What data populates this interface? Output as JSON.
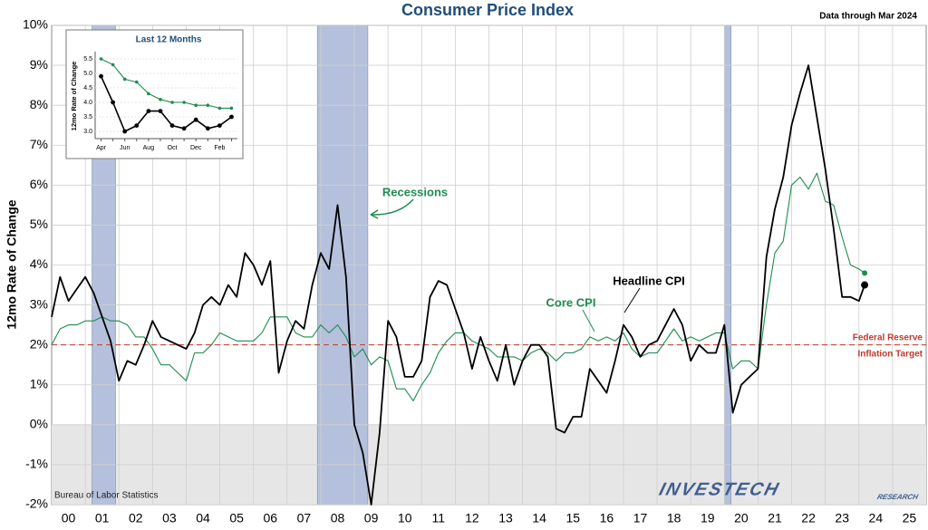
{
  "chart_data": [
    {
      "type": "line",
      "title": "Consumer Price Index",
      "note": "Data through Mar 2024",
      "source": "Bureau of Labor Statistics",
      "logo": [
        "INVESTECH",
        "RESEARCH"
      ],
      "y_label": "12mo Rate of Change",
      "xlim": [
        0,
        26
      ],
      "ylim": [
        -2,
        10
      ],
      "xticks": [
        {
          "value": 0.5,
          "label": "00"
        },
        {
          "value": 1.5,
          "label": "01"
        },
        {
          "value": 2.5,
          "label": "02"
        },
        {
          "value": 3.5,
          "label": "03"
        },
        {
          "value": 4.5,
          "label": "04"
        },
        {
          "value": 5.5,
          "label": "05"
        },
        {
          "value": 6.5,
          "label": "06"
        },
        {
          "value": 7.5,
          "label": "07"
        },
        {
          "value": 8.5,
          "label": "08"
        },
        {
          "value": 9.5,
          "label": "09"
        },
        {
          "value": 10.5,
          "label": "10"
        },
        {
          "value": 11.5,
          "label": "11"
        },
        {
          "value": 12.5,
          "label": "12"
        },
        {
          "value": 13.5,
          "label": "13"
        },
        {
          "value": 14.5,
          "label": "14"
        },
        {
          "value": 15.5,
          "label": "15"
        },
        {
          "value": 16.5,
          "label": "16"
        },
        {
          "value": 17.5,
          "label": "17"
        },
        {
          "value": 18.5,
          "label": "18"
        },
        {
          "value": 19.5,
          "label": "19"
        },
        {
          "value": 20.5,
          "label": "20"
        },
        {
          "value": 21.5,
          "label": "21"
        },
        {
          "value": 22.5,
          "label": "22"
        },
        {
          "value": 23.5,
          "label": "23"
        },
        {
          "value": 24.5,
          "label": "24"
        },
        {
          "value": 25.5,
          "label": "25"
        }
      ],
      "yticks": [
        {
          "value": -2,
          "label": "-2%"
        },
        {
          "value": -1,
          "label": "-1%"
        },
        {
          "value": 0,
          "label": "0%"
        },
        {
          "value": 1,
          "label": "1%"
        },
        {
          "value": 2,
          "label": "2%"
        },
        {
          "value": 3,
          "label": "3%"
        },
        {
          "value": 4,
          "label": "4%"
        },
        {
          "value": 5,
          "label": "5%"
        },
        {
          "value": 6,
          "label": "6%"
        },
        {
          "value": 7,
          "label": "7%"
        },
        {
          "value": 8,
          "label": "8%"
        },
        {
          "value": 9,
          "label": "9%"
        },
        {
          "value": 10,
          "label": "10%"
        }
      ],
      "grid": true,
      "recession_label": "Recessions",
      "recession_color": "#b4c0dc",
      "recessions": [
        [
          1.2,
          1.9
        ],
        [
          7.9,
          9.4
        ],
        [
          20.0,
          20.2
        ]
      ],
      "target": 2,
      "target_label": [
        "Federal Reserve",
        "Inflation Target"
      ],
      "target_color": "#c0392b",
      "x": [
        0,
        0.25,
        0.5,
        0.75,
        1,
        1.25,
        1.5,
        1.75,
        2,
        2.25,
        2.5,
        2.75,
        3,
        3.25,
        3.5,
        3.75,
        4,
        4.25,
        4.5,
        4.75,
        5,
        5.25,
        5.5,
        5.75,
        6,
        6.25,
        6.5,
        6.75,
        7,
        7.25,
        7.5,
        7.75,
        8,
        8.25,
        8.5,
        8.75,
        9,
        9.25,
        9.5,
        9.75,
        10,
        10.25,
        10.5,
        10.75,
        11,
        11.25,
        11.5,
        11.75,
        12,
        12.25,
        12.5,
        12.75,
        13,
        13.25,
        13.5,
        13.75,
        14,
        14.25,
        14.5,
        14.75,
        15,
        15.25,
        15.5,
        15.75,
        16,
        16.25,
        16.5,
        16.75,
        17,
        17.25,
        17.5,
        17.75,
        18,
        18.25,
        18.5,
        18.75,
        19,
        19.25,
        19.5,
        19.75,
        20,
        20.25,
        20.5,
        20.75,
        21,
        21.25,
        21.5,
        21.75,
        22,
        22.25,
        22.5,
        22.75,
        23,
        23.25,
        23.5,
        23.75,
        24,
        24.17
      ],
      "series": [
        {
          "name": "Headline CPI",
          "color": "#000000",
          "values": [
            2.7,
            3.7,
            3.1,
            3.4,
            3.7,
            3.3,
            2.7,
            2.1,
            1.1,
            1.6,
            1.5,
            2.0,
            2.6,
            2.2,
            2.1,
            2.0,
            1.9,
            2.3,
            3.0,
            3.2,
            3.0,
            3.5,
            3.2,
            4.3,
            4.0,
            3.5,
            4.1,
            1.3,
            2.1,
            2.6,
            2.4,
            3.5,
            4.3,
            3.9,
            5.5,
            3.7,
            0.0,
            -0.7,
            -2.0,
            -0.2,
            2.6,
            2.2,
            1.2,
            1.2,
            1.6,
            3.2,
            3.6,
            3.5,
            2.9,
            2.3,
            1.4,
            2.2,
            1.6,
            1.1,
            2.0,
            1.0,
            1.6,
            2.0,
            2.0,
            1.7,
            -0.1,
            -0.2,
            0.2,
            0.2,
            1.4,
            1.1,
            0.8,
            1.6,
            2.5,
            2.2,
            1.7,
            2.0,
            2.1,
            2.5,
            2.9,
            2.5,
            1.6,
            2.0,
            1.8,
            1.8,
            2.5,
            0.3,
            1.0,
            1.2,
            1.4,
            4.2,
            5.4,
            6.2,
            7.5,
            8.3,
            9.0,
            7.7,
            6.4,
            4.9,
            3.2,
            3.2,
            3.1,
            3.5
          ]
        },
        {
          "name": "Core CPI",
          "color": "#1e8c4e",
          "values": [
            2.0,
            2.4,
            2.5,
            2.5,
            2.6,
            2.6,
            2.7,
            2.6,
            2.6,
            2.5,
            2.2,
            2.2,
            1.9,
            1.5,
            1.5,
            1.3,
            1.1,
            1.8,
            1.8,
            2.0,
            2.3,
            2.2,
            2.1,
            2.1,
            2.1,
            2.3,
            2.7,
            2.7,
            2.7,
            2.3,
            2.2,
            2.2,
            2.5,
            2.3,
            2.5,
            2.2,
            1.7,
            1.9,
            1.5,
            1.7,
            1.6,
            0.9,
            0.9,
            0.6,
            1.0,
            1.3,
            1.8,
            2.1,
            2.3,
            2.3,
            2.1,
            2.0,
            1.9,
            1.7,
            1.7,
            1.7,
            1.6,
            1.8,
            1.9,
            1.8,
            1.6,
            1.8,
            1.8,
            1.9,
            2.2,
            2.1,
            2.2,
            2.1,
            2.3,
            1.9,
            1.7,
            1.8,
            1.8,
            2.1,
            2.4,
            2.1,
            2.2,
            2.1,
            2.2,
            2.3,
            2.3,
            1.4,
            1.6,
            1.6,
            1.4,
            3.0,
            4.3,
            4.6,
            6.0,
            6.2,
            5.9,
            6.3,
            5.6,
            5.5,
            4.7,
            4.0,
            3.9,
            3.8
          ]
        }
      ]
    },
    {
      "type": "line",
      "title": "Last 12 Months",
      "y_label": "12mo Rate of Change",
      "categories": [
        "Apr",
        null,
        "Jun",
        null,
        "Aug",
        null,
        "Oct",
        null,
        "Dec",
        null,
        "Feb",
        null
      ],
      "ylim": [
        2.75,
        5.75
      ],
      "yticks": [
        {
          "value": 3,
          "label": "3.0"
        },
        {
          "value": 3.5,
          "label": "3.5"
        },
        {
          "value": 4,
          "label": "4.0"
        },
        {
          "value": 4.5,
          "label": "4.5"
        },
        {
          "value": 5,
          "label": "5.0"
        },
        {
          "value": 5.5,
          "label": "5.5"
        }
      ],
      "series": [
        {
          "name": "Headline CPI",
          "color": "#000000",
          "values": [
            4.9,
            4.0,
            3.0,
            3.2,
            3.7,
            3.7,
            3.2,
            3.1,
            3.4,
            3.1,
            3.2,
            3.5
          ]
        },
        {
          "name": "Core CPI",
          "color": "#1e8c4e",
          "values": [
            5.5,
            5.3,
            4.8,
            4.7,
            4.3,
            4.1,
            4.0,
            4.0,
            3.9,
            3.9,
            3.8,
            3.8
          ]
        }
      ]
    }
  ]
}
